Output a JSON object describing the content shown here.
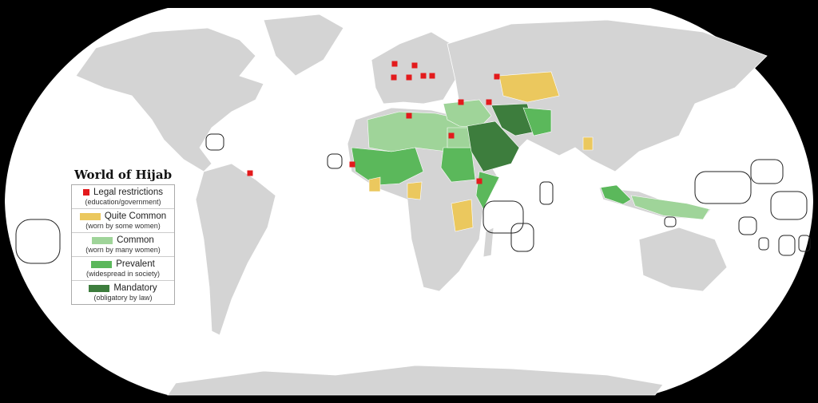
{
  "legend": {
    "title": "World of Hijab",
    "items": [
      {
        "label": "Legal restrictions",
        "sub": "(education/government)",
        "color": "#e31a1c",
        "swatch": "square"
      },
      {
        "label": "Quite Common",
        "sub": "(worn by some women)",
        "color": "#ebc85e",
        "swatch": "bar"
      },
      {
        "label": "Common",
        "sub": "(worn by many women)",
        "color": "#9fd499",
        "swatch": "bar"
      },
      {
        "label": "Prevalent",
        "sub": "(widespread in society)",
        "color": "#5bb85b",
        "swatch": "bar"
      },
      {
        "label": "Mandatory",
        "sub": "(obligatory by law)",
        "color": "#3d7d3d",
        "swatch": "bar"
      }
    ]
  },
  "colors": {
    "background": "#000000",
    "ocean": "#ffffff",
    "land": "#d4d4d4",
    "border": "#ffffff"
  }
}
